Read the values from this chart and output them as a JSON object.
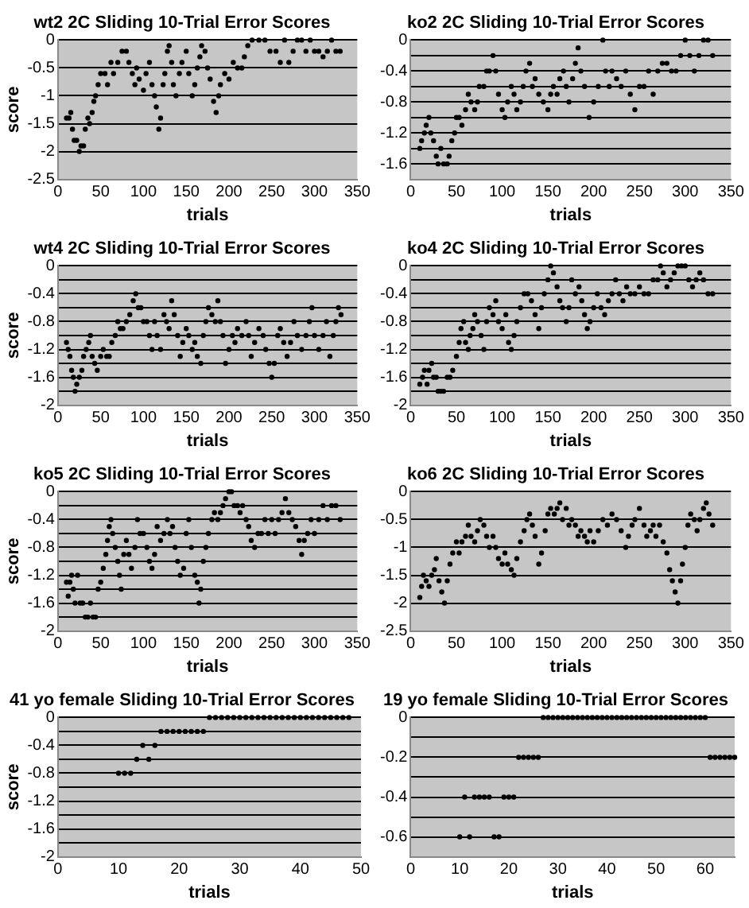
{
  "chart_data": [
    {
      "type": "scatter",
      "title": "wt2 2C Sliding 10-Trial Error Scores",
      "xlabel": "trials",
      "ylabel": "score",
      "color": "#000000",
      "marker": "circle",
      "grid": "y",
      "xlim": [
        0,
        350
      ],
      "xticks": [
        0,
        50,
        100,
        150,
        200,
        250,
        300,
        350
      ],
      "ylim": [
        -2.5,
        0
      ],
      "yticks": [
        0,
        -0.5,
        -1,
        -1.5,
        -2,
        -2.5
      ],
      "x": [
        10,
        13,
        15,
        17,
        19,
        22,
        25,
        27,
        30,
        32,
        35,
        37,
        40,
        42,
        44,
        47,
        50,
        55,
        58,
        62,
        65,
        70,
        75,
        80,
        83,
        87,
        90,
        92,
        95,
        100,
        103,
        107,
        110,
        113,
        115,
        118,
        120,
        123,
        125,
        128,
        130,
        133,
        135,
        138,
        142,
        145,
        150,
        153,
        157,
        160,
        163,
        166,
        168,
        172,
        175,
        178,
        182,
        185,
        188,
        190,
        195,
        200,
        205,
        210,
        215,
        218,
        222,
        227,
        235,
        242,
        248,
        255,
        260,
        265,
        270,
        275,
        280,
        285,
        290,
        295,
        300,
        305,
        310,
        315,
        320,
        325,
        330
      ],
      "values": [
        -1.4,
        -1.4,
        -1.3,
        -1.6,
        -1.8,
        -1.8,
        -2.0,
        -1.9,
        -1.9,
        -1.6,
        -1.4,
        -1.5,
        -1.3,
        -1.1,
        -1.0,
        -0.8,
        -0.6,
        -0.6,
        -0.8,
        -0.4,
        -0.6,
        -0.4,
        -0.2,
        -0.2,
        -0.4,
        -0.6,
        -0.8,
        -0.5,
        -0.7,
        -0.9,
        -0.6,
        -0.4,
        -0.8,
        -1.0,
        -1.2,
        -1.6,
        -1.4,
        -0.8,
        -0.6,
        -0.2,
        -0.1,
        -0.4,
        -0.8,
        -1.0,
        -0.6,
        -0.4,
        -0.2,
        -0.6,
        -1.0,
        -0.8,
        -0.5,
        -0.3,
        -0.1,
        -0.2,
        -0.5,
        -0.7,
        -1.1,
        -1.3,
        -1.0,
        -0.8,
        -0.6,
        -0.7,
        -0.4,
        -0.5,
        -0.5,
        -0.3,
        -0.1,
        0,
        0,
        0,
        -0.2,
        -0.2,
        -0.4,
        0,
        -0.4,
        -0.2,
        0,
        0,
        -0.2,
        0,
        -0.2,
        -0.2,
        -0.3,
        -0.2,
        0,
        -0.2,
        -0.2
      ]
    },
    {
      "type": "scatter",
      "title": "ko2 2C Sliding 10-Trial Error Scores",
      "xlabel": "trials",
      "color": "#000000",
      "marker": "circle",
      "grid": "y",
      "xlim": [
        0,
        350
      ],
      "xticks": [
        0,
        50,
        100,
        150,
        200,
        250,
        300,
        350
      ],
      "ylim": [
        -1.8,
        0
      ],
      "yticks": [
        0,
        {
          "value": -0.2,
          "label": null
        },
        -0.4,
        {
          "value": -0.6,
          "label": null
        },
        -0.8,
        {
          "value": -1,
          "label": null
        },
        -1.2,
        {
          "value": -1.4,
          "label": null
        },
        -1.6,
        {
          "value": -1.8,
          "label": null
        }
      ],
      "x": [
        10,
        12,
        15,
        17,
        20,
        22,
        25,
        28,
        30,
        33,
        36,
        40,
        42,
        45,
        48,
        50,
        53,
        56,
        60,
        63,
        66,
        70,
        73,
        75,
        80,
        83,
        86,
        90,
        93,
        96,
        100,
        103,
        106,
        110,
        113,
        116,
        120,
        123,
        126,
        130,
        133,
        136,
        140,
        145,
        150,
        153,
        156,
        160,
        163,
        167,
        170,
        173,
        177,
        180,
        183,
        186,
        190,
        195,
        200,
        205,
        210,
        213,
        217,
        220,
        225,
        230,
        235,
        240,
        245,
        250,
        255,
        260,
        265,
        270,
        275,
        280,
        285,
        290,
        295,
        300,
        305,
        310,
        315,
        320,
        325,
        330
      ],
      "values": [
        -1.4,
        -1.3,
        -1.2,
        -1.1,
        -1.0,
        -1.2,
        -1.3,
        -1.5,
        -1.6,
        -1.4,
        -1.6,
        -1.6,
        -1.5,
        -1.3,
        -1.2,
        -1.0,
        -1.0,
        -1.1,
        -0.9,
        -0.7,
        -0.8,
        -0.9,
        -0.8,
        -0.6,
        -0.6,
        -0.4,
        -0.4,
        -0.2,
        -0.4,
        -0.7,
        -0.9,
        -1.0,
        -0.8,
        -0.6,
        -0.7,
        -0.9,
        -0.8,
        -0.6,
        -0.4,
        -0.3,
        -0.6,
        -0.5,
        -0.7,
        -0.8,
        -0.9,
        -0.7,
        -0.6,
        -0.7,
        -0.5,
        -0.4,
        -0.6,
        -0.8,
        -0.5,
        -0.3,
        -0.1,
        -0.4,
        -0.6,
        -1.0,
        -0.8,
        -0.6,
        0,
        -0.4,
        -0.6,
        -0.4,
        -0.5,
        -0.6,
        -0.4,
        -0.7,
        -0.9,
        -0.6,
        -0.6,
        -0.4,
        -0.7,
        -0.4,
        -0.3,
        -0.3,
        -0.4,
        -0.4,
        -0.2,
        0,
        -0.2,
        -0.4,
        -0.2,
        0,
        0,
        -0.2
      ]
    },
    {
      "type": "scatter",
      "title": "wt4 2C Sliding 10-Trial Error Scores",
      "xlabel": "trials",
      "ylabel": "score",
      "color": "#000000",
      "marker": "circle",
      "grid": "y",
      "xlim": [
        0,
        350
      ],
      "xticks": [
        0,
        50,
        100,
        150,
        200,
        250,
        300,
        350
      ],
      "ylim": [
        -2,
        0
      ],
      "yticks": [
        0,
        {
          "value": -0.2,
          "label": null
        },
        -0.4,
        {
          "value": -0.6,
          "label": null
        },
        -0.8,
        {
          "value": -1,
          "label": null
        },
        -1.2,
        {
          "value": -1.4,
          "label": null
        },
        -1.6,
        {
          "value": -1.8,
          "label": null
        },
        -2
      ],
      "x": [
        10,
        12,
        14,
        16,
        18,
        20,
        22,
        25,
        28,
        30,
        33,
        36,
        38,
        40,
        43,
        46,
        50,
        53,
        57,
        60,
        63,
        67,
        70,
        73,
        76,
        80,
        84,
        88,
        91,
        94,
        97,
        100,
        104,
        107,
        110,
        113,
        116,
        120,
        124,
        127,
        130,
        133,
        136,
        140,
        143,
        146,
        150,
        153,
        157,
        160,
        163,
        167,
        170,
        173,
        176,
        180,
        184,
        187,
        190,
        193,
        196,
        200,
        204,
        207,
        210,
        215,
        220,
        223,
        226,
        230,
        235,
        240,
        243,
        247,
        250,
        253,
        257,
        260,
        264,
        268,
        272,
        276,
        280,
        285,
        290,
        294,
        297,
        300,
        305,
        310,
        314,
        318,
        322,
        325,
        328,
        331
      ],
      "values": [
        -1.1,
        -1.2,
        -1.3,
        -1.5,
        -1.6,
        -1.8,
        -1.7,
        -1.6,
        -1.5,
        -1.3,
        -1.2,
        -1.1,
        -1.0,
        -1.3,
        -1.4,
        -1.5,
        -1.3,
        -1.2,
        -1.3,
        -1.3,
        -1.1,
        -1.0,
        -0.8,
        -0.9,
        -0.9,
        -0.8,
        -0.7,
        -0.5,
        -0.4,
        -0.6,
        -0.6,
        -0.8,
        -0.8,
        -1.0,
        -1.2,
        -0.8,
        -1.0,
        -1.2,
        -0.7,
        -0.8,
        -0.9,
        -0.5,
        -0.7,
        -1.0,
        -1.3,
        -1.1,
        -0.9,
        -1.0,
        -1.2,
        -1.1,
        -1.3,
        -1.4,
        -1.0,
        -0.8,
        -0.6,
        -0.7,
        -0.8,
        -0.5,
        -0.8,
        -1.0,
        -1.4,
        -1.2,
        -1.0,
        -1.1,
        -0.9,
        -1.0,
        -0.8,
        -1.0,
        -1.3,
        -1.1,
        -0.9,
        -1.0,
        -1.2,
        -1.4,
        -1.6,
        -1.4,
        -1.0,
        -0.9,
        -1.1,
        -1.3,
        -1.1,
        -0.8,
        -1.0,
        -1.2,
        -1.0,
        -0.8,
        -0.6,
        -1.0,
        -1.2,
        -1.0,
        -0.8,
        -1.3,
        -1.0,
        -0.8,
        -0.6,
        -0.7
      ]
    },
    {
      "type": "scatter",
      "title": "ko4 2C Sliding 10-Trial Error Scores",
      "xlabel": "trials",
      "color": "#000000",
      "marker": "circle",
      "grid": "y",
      "xlim": [
        0,
        350
      ],
      "xticks": [
        0,
        50,
        100,
        150,
        200,
        250,
        300,
        350
      ],
      "ylim": [
        -2,
        0
      ],
      "yticks": [
        0,
        {
          "value": -0.2,
          "label": null
        },
        -0.4,
        {
          "value": -0.6,
          "label": null
        },
        -0.8,
        {
          "value": -1,
          "label": null
        },
        -1.2,
        {
          "value": -1.4,
          "label": null
        },
        -1.6,
        {
          "value": -1.8,
          "label": null
        },
        -2
      ],
      "x": [
        10,
        13,
        15,
        18,
        20,
        23,
        25,
        28,
        30,
        33,
        36,
        40,
        43,
        46,
        50,
        53,
        55,
        58,
        60,
        63,
        65,
        68,
        70,
        73,
        77,
        80,
        83,
        86,
        90,
        93,
        96,
        100,
        104,
        107,
        110,
        113,
        116,
        120,
        124,
        128,
        132,
        136,
        140,
        143,
        146,
        150,
        153,
        156,
        160,
        163,
        166,
        170,
        173,
        176,
        180,
        184,
        187,
        190,
        193,
        196,
        200,
        204,
        208,
        212,
        216,
        220,
        224,
        228,
        232,
        236,
        240,
        245,
        250,
        255,
        260,
        265,
        270,
        273,
        276,
        280,
        284,
        288,
        292,
        296,
        300,
        304,
        308,
        312,
        316,
        320,
        325,
        330
      ],
      "values": [
        -1.7,
        -1.6,
        -1.5,
        -1.7,
        -1.5,
        -1.4,
        -1.6,
        -1.6,
        -1.8,
        -1.8,
        -1.8,
        -1.6,
        -1.6,
        -1.5,
        -1.3,
        -1.1,
        -0.9,
        -0.8,
        -1.1,
        -1.2,
        -1.0,
        -0.9,
        -0.7,
        -0.8,
        -1.0,
        -1.2,
        -0.8,
        -0.6,
        -0.7,
        -0.5,
        -0.8,
        -0.9,
        -0.7,
        -1.1,
        -1.2,
        -1.0,
        -0.8,
        -0.6,
        -0.4,
        -0.4,
        -0.5,
        -0.7,
        -0.9,
        -0.6,
        -0.4,
        -0.2,
        0,
        -0.1,
        -0.3,
        -0.5,
        -0.6,
        -0.8,
        -0.6,
        -0.2,
        -0.4,
        -0.3,
        -0.5,
        -0.7,
        -0.9,
        -0.8,
        -0.6,
        -0.4,
        -0.6,
        -0.7,
        -0.5,
        -0.4,
        -0.2,
        -0.4,
        -0.5,
        -0.3,
        -0.4,
        -0.4,
        -0.3,
        -0.4,
        -0.4,
        -0.2,
        -0.2,
        0,
        -0.1,
        -0.3,
        -0.2,
        -0.1,
        0,
        0,
        0,
        -0.2,
        -0.3,
        -0.2,
        -0.1,
        -0.2,
        -0.4,
        -0.4
      ]
    },
    {
      "type": "scatter",
      "title": "ko5 2C Sliding 10-Trial Error Scores",
      "xlabel": "trials",
      "ylabel": "score",
      "color": "#000000",
      "marker": "circle",
      "grid": "y",
      "xlim": [
        0,
        350
      ],
      "xticks": [
        0,
        50,
        100,
        150,
        200,
        250,
        300,
        350
      ],
      "ylim": [
        -2,
        0
      ],
      "yticks": [
        0,
        {
          "value": -0.2,
          "label": null
        },
        -0.4,
        {
          "value": -0.6,
          "label": null
        },
        -0.8,
        {
          "value": -1,
          "label": null
        },
        -1.2,
        {
          "value": -1.4,
          "label": null
        },
        -1.6,
        {
          "value": -1.8,
          "label": null
        },
        -2
      ],
      "x": [
        10,
        12,
        14,
        16,
        18,
        20,
        23,
        26,
        29,
        32,
        35,
        38,
        41,
        44,
        47,
        50,
        53,
        56,
        58,
        60,
        62,
        64,
        67,
        70,
        72,
        74,
        77,
        80,
        83,
        86,
        90,
        93,
        96,
        100,
        104,
        107,
        110,
        113,
        116,
        120,
        124,
        128,
        131,
        134,
        137,
        140,
        143,
        147,
        150,
        153,
        156,
        160,
        163,
        165,
        167,
        170,
        173,
        176,
        180,
        183,
        187,
        190,
        193,
        196,
        200,
        203,
        206,
        210,
        213,
        216,
        220,
        223,
        226,
        230,
        234,
        238,
        242,
        246,
        250,
        254,
        258,
        262,
        266,
        270,
        274,
        278,
        282,
        285,
        288,
        292,
        296,
        300,
        305,
        310,
        315,
        320,
        325,
        330
      ],
      "values": [
        -1.3,
        -1.5,
        -1.3,
        -1.2,
        -1.4,
        -1.6,
        -1.2,
        -1.6,
        -1.6,
        -1.8,
        -1.8,
        -1.6,
        -1.8,
        -1.8,
        -1.4,
        -1.3,
        -1.1,
        -0.9,
        -0.7,
        -0.5,
        -0.4,
        -0.6,
        -0.8,
        -1.0,
        -1.2,
        -1.4,
        -0.9,
        -0.7,
        -0.9,
        -1.1,
        -0.8,
        -0.4,
        -0.6,
        -0.6,
        -0.8,
        -1.0,
        -1.1,
        -0.9,
        -0.5,
        -0.7,
        -0.6,
        -0.4,
        -0.6,
        -0.5,
        -0.8,
        -1.0,
        -1.2,
        -1.1,
        -0.6,
        -0.4,
        -0.8,
        -1.2,
        -1.3,
        -1.6,
        -1.4,
        -1.0,
        -0.8,
        -0.6,
        -0.4,
        -0.3,
        -0.4,
        -0.3,
        -0.2,
        -0.1,
        0,
        0,
        -0.2,
        -0.2,
        -0.3,
        -0.2,
        -0.4,
        -0.5,
        -0.7,
        -0.8,
        -0.6,
        -0.6,
        -0.4,
        -0.6,
        -0.4,
        -0.6,
        -0.4,
        -0.3,
        -0.1,
        -0.3,
        -0.4,
        -0.5,
        -0.7,
        -0.9,
        -0.7,
        -0.6,
        -0.4,
        -0.6,
        -0.4,
        -0.2,
        -0.4,
        -0.2,
        -0.2,
        -0.4
      ]
    },
    {
      "type": "scatter",
      "title": "ko6 2C Sliding 10-Trial Error Scores",
      "xlabel": "trials",
      "color": "#000000",
      "marker": "circle",
      "grid": "y",
      "xlim": [
        0,
        350
      ],
      "xticks": [
        0,
        50,
        100,
        150,
        200,
        250,
        300,
        350
      ],
      "ylim": [
        -2.5,
        0
      ],
      "yticks": [
        0,
        -0.5,
        -1,
        -1.5,
        -2,
        -2.5
      ],
      "x": [
        10,
        12,
        14,
        17,
        20,
        23,
        26,
        28,
        31,
        34,
        37,
        40,
        43,
        46,
        50,
        53,
        56,
        60,
        63,
        66,
        70,
        73,
        76,
        80,
        83,
        86,
        90,
        93,
        96,
        100,
        103,
        106,
        110,
        113,
        116,
        120,
        124,
        127,
        130,
        133,
        136,
        140,
        143,
        147,
        150,
        153,
        157,
        160,
        163,
        166,
        170,
        173,
        176,
        180,
        183,
        186,
        190,
        193,
        196,
        200,
        205,
        210,
        215,
        220,
        225,
        230,
        235,
        238,
        242,
        245,
        250,
        255,
        258,
        262,
        265,
        268,
        272,
        276,
        280,
        283,
        286,
        289,
        292,
        295,
        297,
        300,
        303,
        306,
        310,
        313,
        316,
        320,
        323,
        326,
        330
      ],
      "values": [
        -1.9,
        -1.7,
        -1.5,
        -1.6,
        -1.7,
        -1.5,
        -1.4,
        -1.2,
        -1.6,
        -1.8,
        -2.0,
        -1.6,
        -1.3,
        -1.1,
        -0.9,
        -1.1,
        -0.9,
        -0.8,
        -0.6,
        -0.8,
        -0.9,
        -0.7,
        -0.5,
        -0.6,
        -0.8,
        -1.0,
        -0.8,
        -1.0,
        -1.2,
        -1.3,
        -1.1,
        -1.3,
        -1.4,
        -1.5,
        -1.2,
        -0.9,
        -0.7,
        -0.5,
        -0.4,
        -0.6,
        -0.8,
        -1.3,
        -1.1,
        -0.7,
        -0.4,
        -0.3,
        -0.4,
        -0.3,
        -0.2,
        -0.5,
        -0.3,
        -0.6,
        -0.5,
        -0.6,
        -0.8,
        -0.7,
        -0.8,
        -0.9,
        -0.7,
        -0.9,
        -0.7,
        -0.5,
        -0.6,
        -0.4,
        -0.5,
        -0.7,
        -1.0,
        -0.8,
        -0.6,
        -0.5,
        -0.3,
        -0.6,
        -0.8,
        -0.7,
        -0.6,
        -0.8,
        -0.6,
        -0.9,
        -1.1,
        -1.4,
        -1.6,
        -1.8,
        -2.0,
        -1.6,
        -1.3,
        -1.0,
        -0.6,
        -0.4,
        -0.5,
        -0.7,
        -0.5,
        -0.3,
        -0.2,
        -0.4,
        -0.6
      ]
    },
    {
      "type": "scatter",
      "title": "41 yo female Sliding 10-Trial Error Scores",
      "xlabel": "trials",
      "ylabel": "score",
      "color": "#000000",
      "marker": "circle",
      "grid": "y",
      "xlim": [
        0,
        50
      ],
      "xticks": [
        0,
        10,
        20,
        30,
        40,
        50
      ],
      "ylim": [
        -2,
        0
      ],
      "yticks": [
        0,
        {
          "value": -0.2,
          "label": null
        },
        -0.4,
        {
          "value": -0.6,
          "label": null
        },
        -0.8,
        {
          "value": -1,
          "label": null
        },
        -1.2,
        {
          "value": -1.4,
          "label": null
        },
        -1.6,
        {
          "value": -1.8,
          "label": null
        },
        -2
      ],
      "x": [
        10,
        11,
        12,
        13,
        14,
        15,
        16,
        17,
        18,
        19,
        20,
        21,
        22,
        23,
        24,
        25,
        26,
        27,
        28,
        29,
        30,
        31,
        32,
        33,
        34,
        35,
        36,
        37,
        38,
        39,
        40,
        41,
        42,
        43,
        44,
        45,
        46,
        47,
        48
      ],
      "values": [
        -0.8,
        -0.8,
        -0.8,
        -0.6,
        -0.4,
        -0.6,
        -0.4,
        -0.2,
        -0.2,
        -0.2,
        -0.2,
        -0.2,
        -0.2,
        -0.2,
        -0.2,
        0,
        0,
        0,
        0,
        0,
        0,
        0,
        0,
        0,
        0,
        0,
        0,
        0,
        0,
        0,
        0,
        0,
        0,
        0,
        0,
        0,
        0,
        0,
        0
      ]
    },
    {
      "type": "scatter",
      "title": "19 yo female Sliding 10-Trial Error Scores",
      "xlabel": "trials",
      "color": "#000000",
      "marker": "circle",
      "grid": "y",
      "xlim": [
        0,
        66
      ],
      "xticks": [
        0,
        10,
        20,
        30,
        40,
        50,
        60
      ],
      "ylim": [
        -0.7,
        0
      ],
      "yticks": [
        0,
        {
          "value": -0.1,
          "label": null
        },
        -0.2,
        {
          "value": -0.3,
          "label": null
        },
        -0.4,
        {
          "value": -0.5,
          "label": null
        },
        -0.6,
        {
          "value": -0.7,
          "label": null
        }
      ],
      "x": [
        10,
        11,
        12,
        13,
        14,
        15,
        16,
        17,
        18,
        19,
        20,
        21,
        22,
        23,
        24,
        25,
        26,
        27,
        28,
        29,
        30,
        31,
        32,
        33,
        34,
        35,
        36,
        37,
        38,
        39,
        40,
        41,
        42,
        43,
        44,
        45,
        46,
        47,
        48,
        49,
        50,
        51,
        52,
        53,
        54,
        55,
        56,
        57,
        58,
        59,
        60,
        61,
        62,
        63,
        64,
        65,
        66
      ],
      "values": [
        -0.6,
        -0.4,
        -0.6,
        -0.4,
        -0.4,
        -0.4,
        -0.4,
        -0.6,
        -0.6,
        -0.4,
        -0.4,
        -0.4,
        -0.2,
        -0.2,
        -0.2,
        -0.2,
        -0.2,
        0,
        0,
        0,
        0,
        0,
        0,
        0,
        0,
        0,
        0,
        0,
        0,
        0,
        0,
        0,
        0,
        0,
        0,
        0,
        0,
        0,
        0,
        0,
        0,
        0,
        0,
        0,
        0,
        0,
        0,
        0,
        0,
        0,
        0,
        -0.2,
        -0.2,
        -0.2,
        -0.2,
        -0.2,
        -0.2
      ]
    }
  ]
}
